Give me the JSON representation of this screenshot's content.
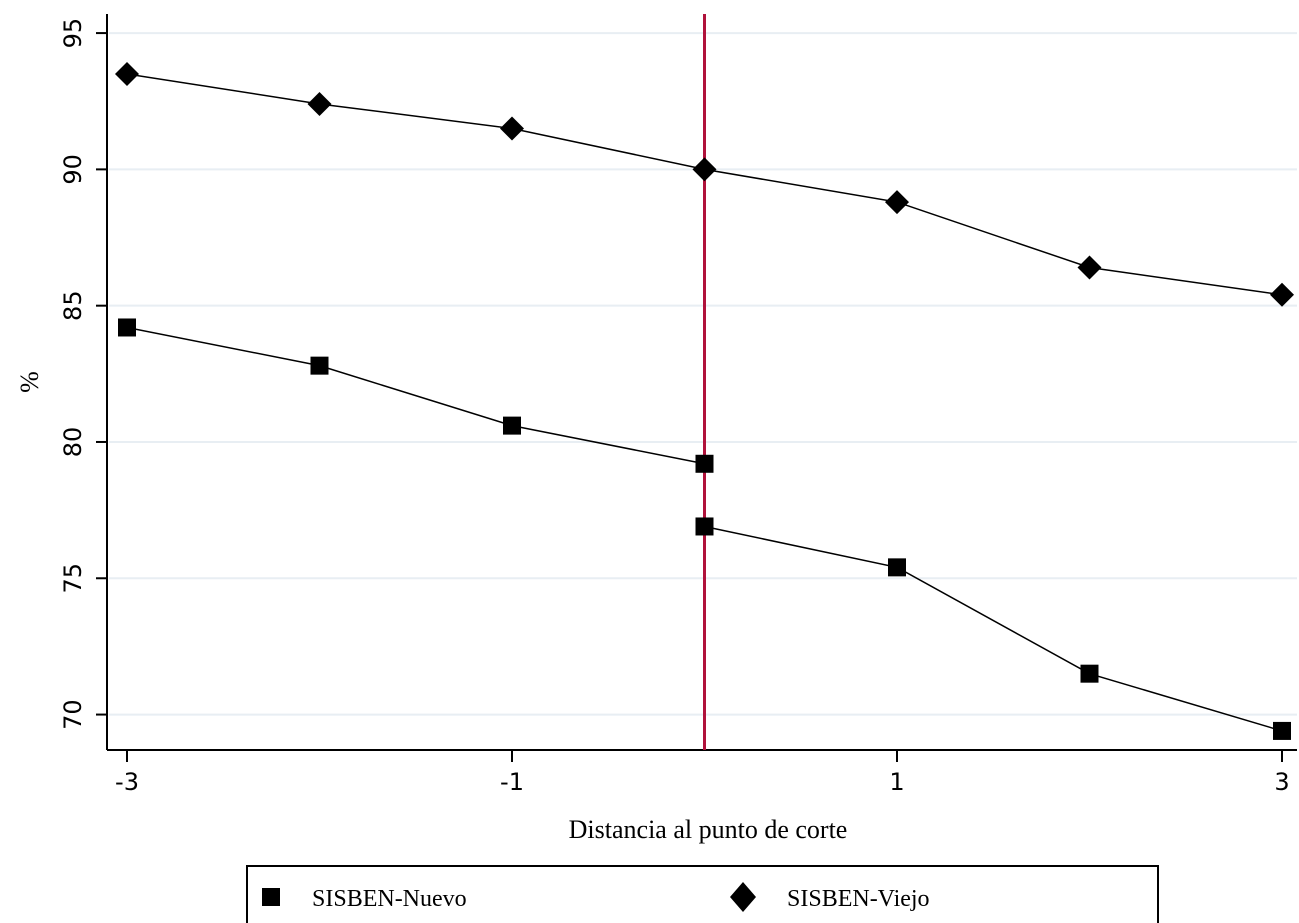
{
  "chart_data": {
    "type": "line",
    "title": "",
    "xlabel": "Distancia al punto de corte",
    "ylabel": "%",
    "xlim": [
      -3,
      3
    ],
    "ylim": [
      68.7,
      95.7
    ],
    "xticks": [
      "-3",
      "-1",
      "1",
      "3"
    ],
    "yticks": [
      "70",
      "75",
      "80",
      "85",
      "90",
      "95"
    ],
    "grid": true,
    "legend_position": "bottom",
    "cutoff_x": 0,
    "cutoff_color": "#b0123b",
    "series": [
      {
        "name": "SISBEN-Nuevo",
        "marker": "square",
        "segments": [
          {
            "x": [
              -3,
              -2,
              -1,
              0
            ],
            "y": [
              84.2,
              82.8,
              80.6,
              79.2
            ]
          },
          {
            "x": [
              0,
              1,
              2,
              3
            ],
            "y": [
              76.9,
              75.4,
              71.5,
              69.4
            ]
          }
        ]
      },
      {
        "name": "SISBEN-Viejo",
        "marker": "diamond",
        "segments": [
          {
            "x": [
              -3,
              -2,
              -1,
              0,
              1,
              2,
              3
            ],
            "y": [
              93.5,
              92.4,
              91.5,
              90.0,
              88.8,
              86.4,
              85.4
            ]
          }
        ]
      }
    ]
  }
}
